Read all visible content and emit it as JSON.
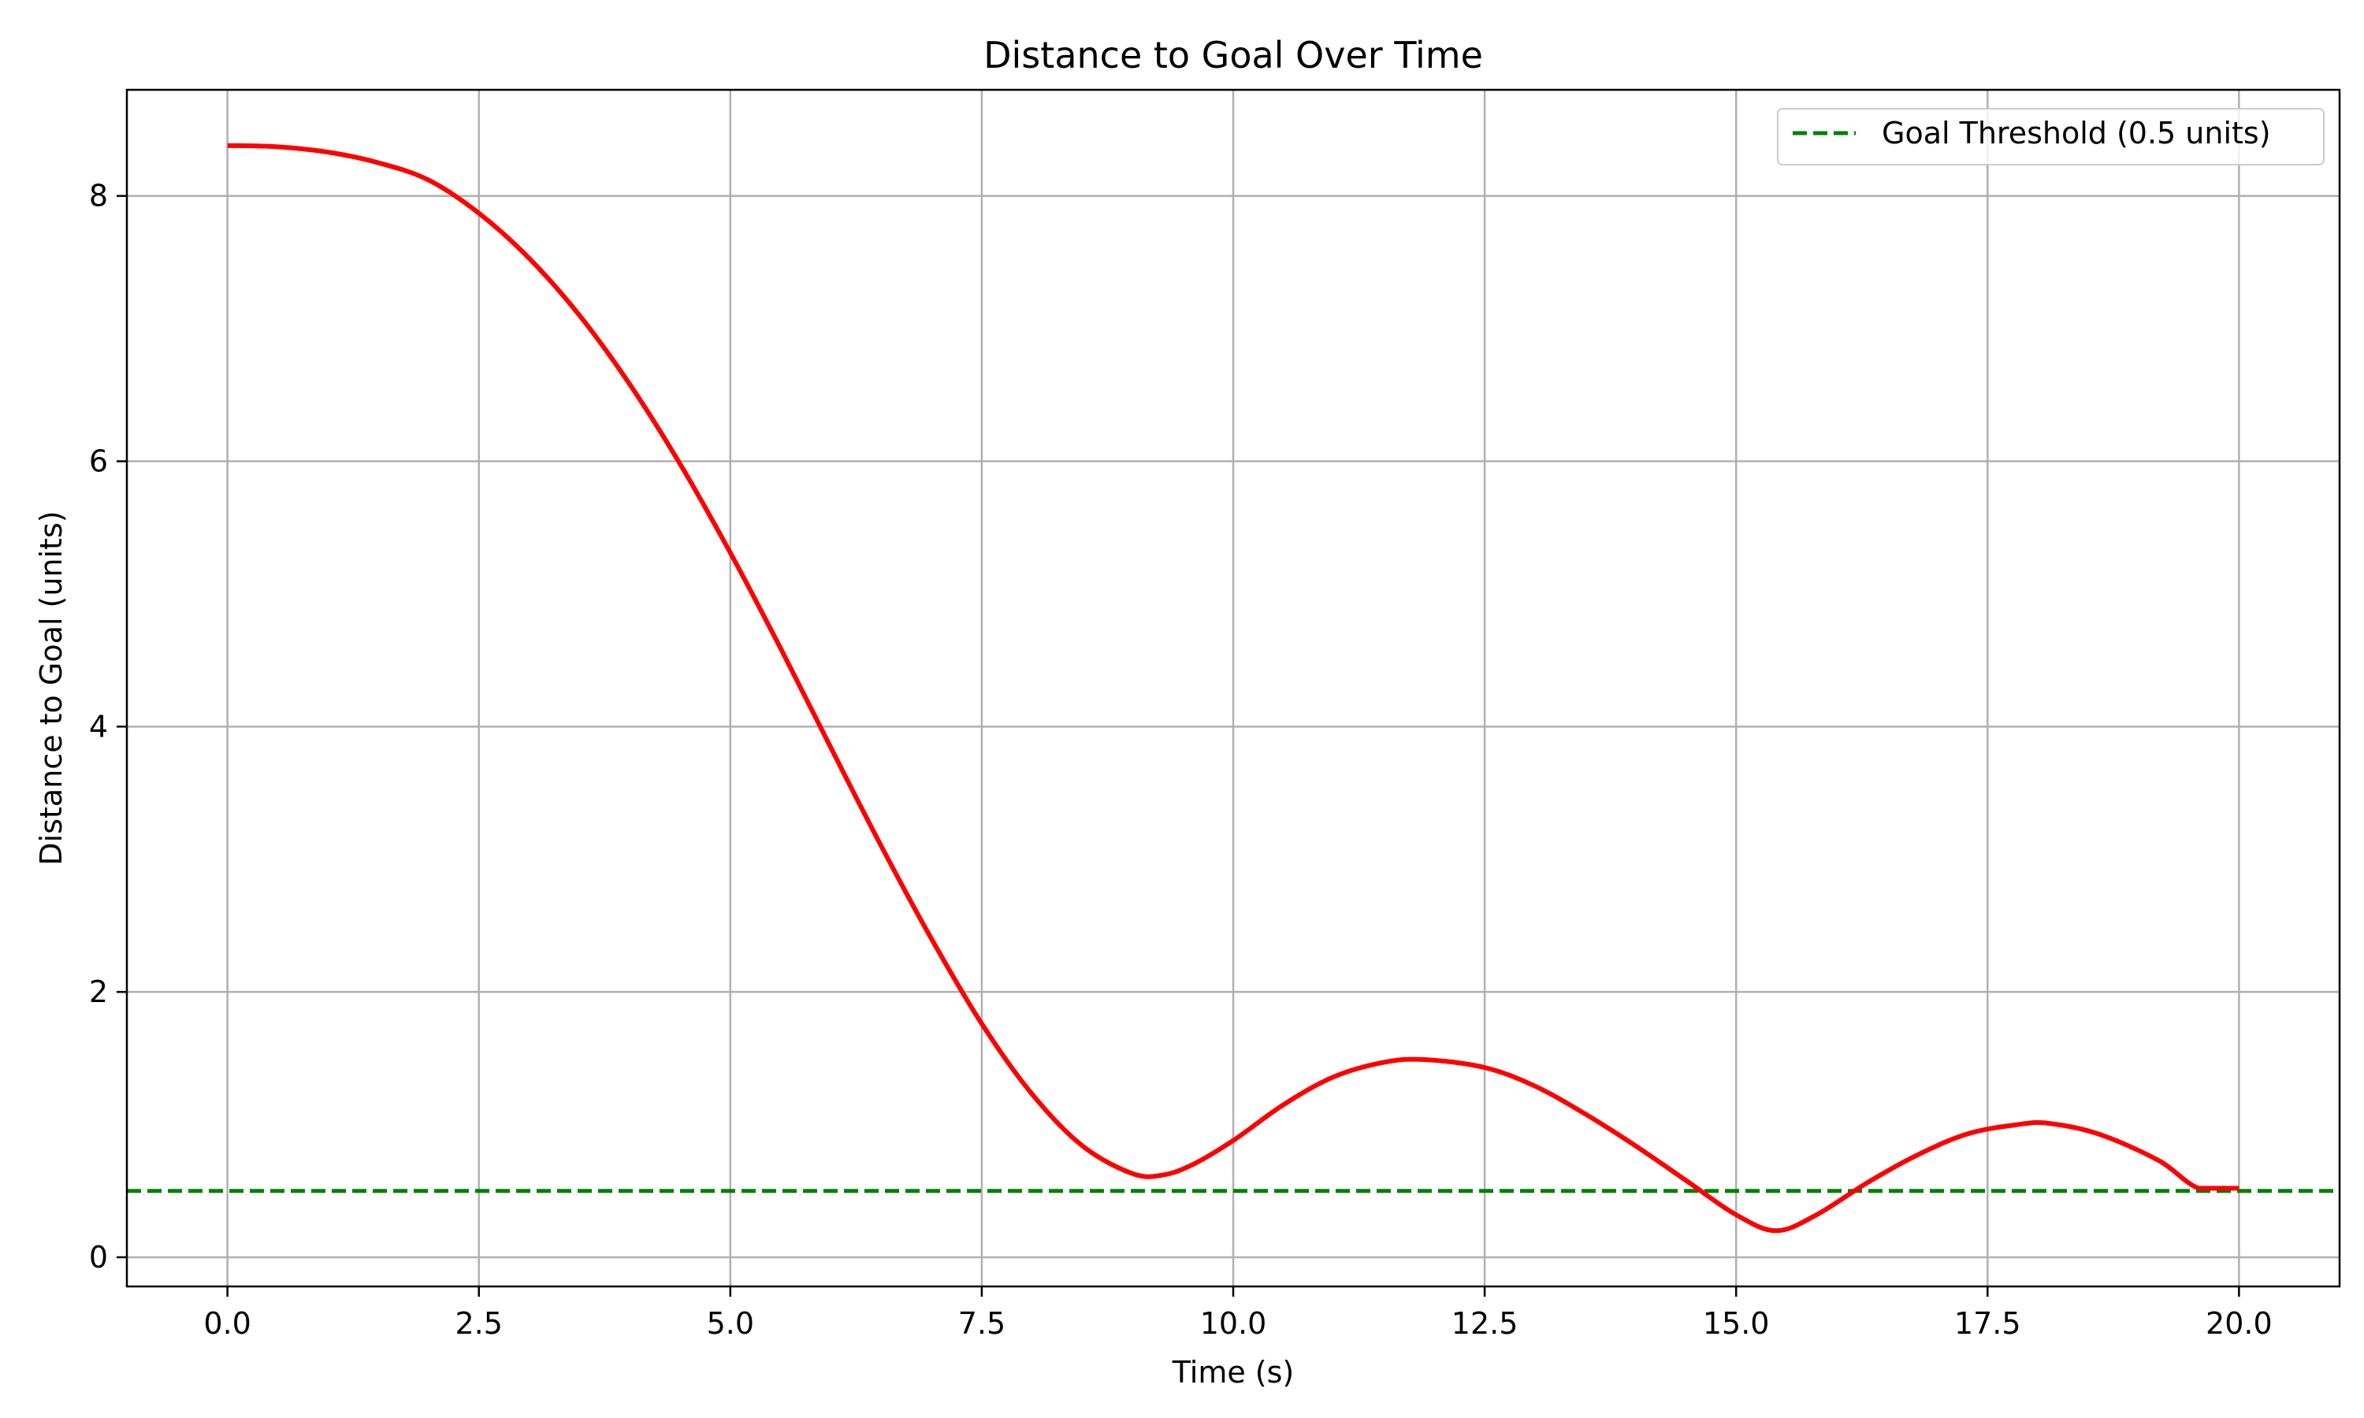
{
  "chart_data": {
    "type": "line",
    "title": "Distance to Goal Over Time",
    "xlabel": "Time (s)",
    "ylabel": "Distance to Goal (units)",
    "xlim": [
      -1.0,
      21.0
    ],
    "ylim": [
      -0.22,
      8.8
    ],
    "xticks": [
      0.0,
      2.5,
      5.0,
      7.5,
      10.0,
      12.5,
      15.0,
      17.5,
      20.0
    ],
    "xtick_labels": [
      "0.0",
      "2.5",
      "5.0",
      "7.5",
      "10.0",
      "12.5",
      "15.0",
      "17.5",
      "20.0"
    ],
    "yticks": [
      0,
      2,
      4,
      6,
      8
    ],
    "ytick_labels": [
      "0",
      "2",
      "4",
      "6",
      "8"
    ],
    "grid": true,
    "legend_placement": "top-right",
    "series": [
      {
        "name": "",
        "color": "#ff0000",
        "style": "solid",
        "x": [
          0.0,
          0.5,
          1.0,
          1.5,
          2.0,
          2.5,
          3.0,
          3.5,
          4.0,
          4.5,
          5.0,
          5.5,
          6.0,
          6.5,
          7.0,
          7.5,
          8.0,
          8.5,
          9.0,
          9.3,
          9.6,
          10.0,
          10.5,
          11.0,
          11.5,
          11.9,
          12.5,
          13.0,
          13.5,
          14.0,
          14.5,
          15.0,
          15.4,
          15.8,
          16.3,
          16.8,
          17.3,
          17.8,
          18.1,
          18.6,
          19.2,
          19.6,
          20.0
        ],
        "y": [
          8.38,
          8.37,
          8.33,
          8.25,
          8.12,
          7.87,
          7.53,
          7.1,
          6.58,
          5.98,
          5.31,
          4.59,
          3.84,
          3.1,
          2.4,
          1.76,
          1.23,
          0.84,
          0.63,
          0.62,
          0.7,
          0.88,
          1.15,
          1.36,
          1.47,
          1.49,
          1.43,
          1.29,
          1.08,
          0.84,
          0.58,
          0.32,
          0.2,
          0.32,
          0.56,
          0.77,
          0.93,
          1.0,
          1.01,
          0.93,
          0.73,
          0.52,
          0.52
        ]
      },
      {
        "name": "Goal Threshold (0.5 units)",
        "color": "#008000",
        "style": "dashed",
        "x": [
          -1.0,
          21.0
        ],
        "y": [
          0.5,
          0.5
        ]
      }
    ]
  }
}
